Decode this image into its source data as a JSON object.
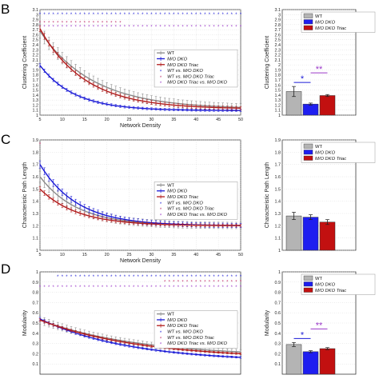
{
  "colors": {
    "wt": "#8a8a8a",
    "mo": "#1a1ad6",
    "triac": "#b11a1a",
    "sig_wt_mo": "#1a1ad6",
    "sig_wt_triac": "#c0306a",
    "sig_mo_triac": "#9a38c8",
    "wt_bar": "#b4b4b4",
    "mo_bar": "#1e1ef0",
    "triac_bar": "#c21010"
  },
  "panels": [
    "B",
    "C",
    "D"
  ],
  "chart_data": [
    {
      "id": "B-line",
      "type": "line",
      "xlabel": "Network Density",
      "ylabel": "Clustering Coefficient",
      "xlim": [
        5,
        50
      ],
      "ylim": [
        1,
        3.1
      ],
      "xticks": [
        "5",
        "10",
        "15",
        "20",
        "25",
        "30",
        "35",
        "40",
        "45",
        "50"
      ],
      "yticks": [
        "1",
        "1.1",
        "1.2",
        "1.3",
        "1.4",
        "1.5",
        "1.6",
        "1.7",
        "1.8",
        "1.9",
        "2",
        "2.1",
        "2.2",
        "2.3",
        "2.4",
        "2.5",
        "2.6",
        "2.7",
        "2.8",
        "2.9",
        "3",
        "3.1"
      ],
      "grid": true,
      "legend_position": "center-right",
      "legend": [
        "WT",
        "M/O DKO",
        "M/O DKO Triac",
        "WT vs. M/O DKO",
        "WT vs. M/O DKO Triac",
        "M/O DKO Triac vs. M/O DKO"
      ],
      "series": [
        {
          "name": "WT",
          "key": "wt",
          "a": 1.12,
          "b": 1.55,
          "k": 0.085,
          "err": 0.13
        },
        {
          "name": "M/O DKO",
          "key": "mo",
          "a": 1.09,
          "b": 0.9,
          "k": 0.13,
          "err": 0.035
        },
        {
          "name": "M/O DKO Triac",
          "key": "triac",
          "a": 1.12,
          "b": 1.6,
          "k": 0.1,
          "err": 0.06
        }
      ],
      "sig_rows": [
        {
          "name": "WT vs. M/O DKO",
          "key": "sig_wt_mo",
          "y": 3.02,
          "from": 5,
          "to": 50
        },
        {
          "name": "WT vs. M/O DKO Triac",
          "key": "sig_wt_triac",
          "y": 2.85,
          "from": 5,
          "to": 23
        },
        {
          "name": "M/O DKO Triac vs. M/O DKO",
          "key": "sig_mo_triac",
          "y": 2.77,
          "from": 5,
          "to": 50
        }
      ]
    },
    {
      "id": "B-bar",
      "type": "bar",
      "ylabel": "Clustering Coefficient",
      "ylim": [
        1,
        3.1
      ],
      "yticks": [
        "1",
        "1.1",
        "1.2",
        "1.3",
        "1.4",
        "1.5",
        "1.6",
        "1.7",
        "1.8",
        "1.9",
        "2",
        "2.1",
        "2.2",
        "2.3",
        "2.4",
        "2.5",
        "2.6",
        "2.7",
        "2.8",
        "2.9",
        "3",
        "3.1"
      ],
      "legend": [
        "WT",
        "M/O DKO",
        "M/O DKO Triac"
      ],
      "values": [
        1.47,
        1.22,
        1.39
      ],
      "errors": [
        0.1,
        0.02,
        0.02
      ],
      "annotations": [
        "*",
        "**"
      ]
    },
    {
      "id": "C-line",
      "type": "line",
      "xlabel": "Network Density",
      "ylabel": "Characteristic Path Length",
      "xlim": [
        5,
        50
      ],
      "ylim": [
        1,
        1.9
      ],
      "xticks": [
        "5",
        "10",
        "15",
        "20",
        "25",
        "30",
        "35",
        "40",
        "45",
        "50"
      ],
      "yticks": [
        "1",
        "1.1",
        "1.2",
        "1.3",
        "1.4",
        "1.5",
        "1.6",
        "1.7",
        "1.8",
        "1.9"
      ],
      "grid": true,
      "legend_position": "center-right",
      "legend": [
        "WT",
        "M/O DKO",
        "M/O DKO Triac",
        "WT vs. M/O DKO",
        "WT vs. M/O DKO Triac",
        "M/O DKO Triac vs. M/O DKO"
      ],
      "series": [
        {
          "name": "WT",
          "key": "wt",
          "a": 1.2,
          "b": 0.4,
          "k": 0.12,
          "err": 0.045
        },
        {
          "name": "M/O DKO",
          "key": "mo",
          "a": 1.2,
          "b": 0.5,
          "k": 0.12,
          "err": 0.03
        },
        {
          "name": "M/O DKO Triac",
          "key": "triac",
          "a": 1.2,
          "b": 0.3,
          "k": 0.12,
          "err": 0.02
        }
      ],
      "sig_rows": [
        {
          "name": "WT vs. M/O DKO Triac",
          "key": "sig_wt_triac",
          "y": 1.87,
          "from": 5,
          "to": 5
        }
      ]
    },
    {
      "id": "C-bar",
      "type": "bar",
      "ylabel": "Characteristic Path Length",
      "ylim": [
        1,
        1.9
      ],
      "yticks": [
        "1",
        "1.1",
        "1.2",
        "1.3",
        "1.4",
        "1.5",
        "1.6",
        "1.7",
        "1.8",
        "1.9"
      ],
      "legend": [
        "WT",
        "M/O DKO",
        "M/O DKO Triac"
      ],
      "values": [
        1.28,
        1.27,
        1.23
      ],
      "errors": [
        0.03,
        0.02,
        0.02
      ],
      "annotations": []
    },
    {
      "id": "D-line",
      "type": "line",
      "xlabel": "",
      "ylabel": "Modularity",
      "xlim": [
        5,
        50
      ],
      "ylim": [
        0,
        1
      ],
      "xticks": [],
      "yticks": [
        "0.1",
        "0.2",
        "0.3",
        "0.4",
        "0.5",
        "0.6",
        "0.7",
        "0.8",
        "0.9",
        "1"
      ],
      "grid": true,
      "legend_position": "center-right",
      "legend": [
        "WT",
        "M/O DKO",
        "M/O DKO Triac",
        "WT vs. M/O DKO",
        "WT vs. M/O DKO Triac",
        "M/O DKO Triac vs. M/O DKO"
      ],
      "series": [
        {
          "name": "WT",
          "key": "wt",
          "a": 0.17,
          "b": 0.36,
          "k": 0.045,
          "err": 0.04
        },
        {
          "name": "M/O DKO",
          "key": "mo",
          "a": 0.12,
          "b": 0.42,
          "k": 0.05,
          "err": 0.015
        },
        {
          "name": "M/O DKO Triac",
          "key": "triac",
          "a": 0.15,
          "b": 0.38,
          "k": 0.045,
          "err": 0.015
        }
      ],
      "sig_rows": [
        {
          "name": "WT vs. M/O DKO",
          "key": "sig_wt_mo",
          "y": 0.96,
          "from": 9,
          "to": 50
        },
        {
          "name": "WT vs. M/O DKO Triac",
          "key": "sig_wt_triac",
          "y": 0.91,
          "from": 33,
          "to": 50
        },
        {
          "name": "M/O DKO Triac vs. M/O DKO",
          "key": "sig_mo_triac",
          "y": 0.86,
          "from": 5,
          "to": 50
        }
      ]
    },
    {
      "id": "D-bar",
      "type": "bar",
      "ylabel": "Modularity",
      "ylim": [
        0,
        1
      ],
      "yticks": [
        "0.1",
        "0.2",
        "0.3",
        "0.4",
        "0.5",
        "0.6",
        "0.7",
        "0.8",
        "0.9",
        "1"
      ],
      "legend": [
        "WT",
        "M/O DKO",
        "M/O DKO Triac"
      ],
      "values": [
        0.29,
        0.22,
        0.25
      ],
      "errors": [
        0.02,
        0.01,
        0.01
      ],
      "annotations": [
        "*",
        "**"
      ]
    }
  ]
}
